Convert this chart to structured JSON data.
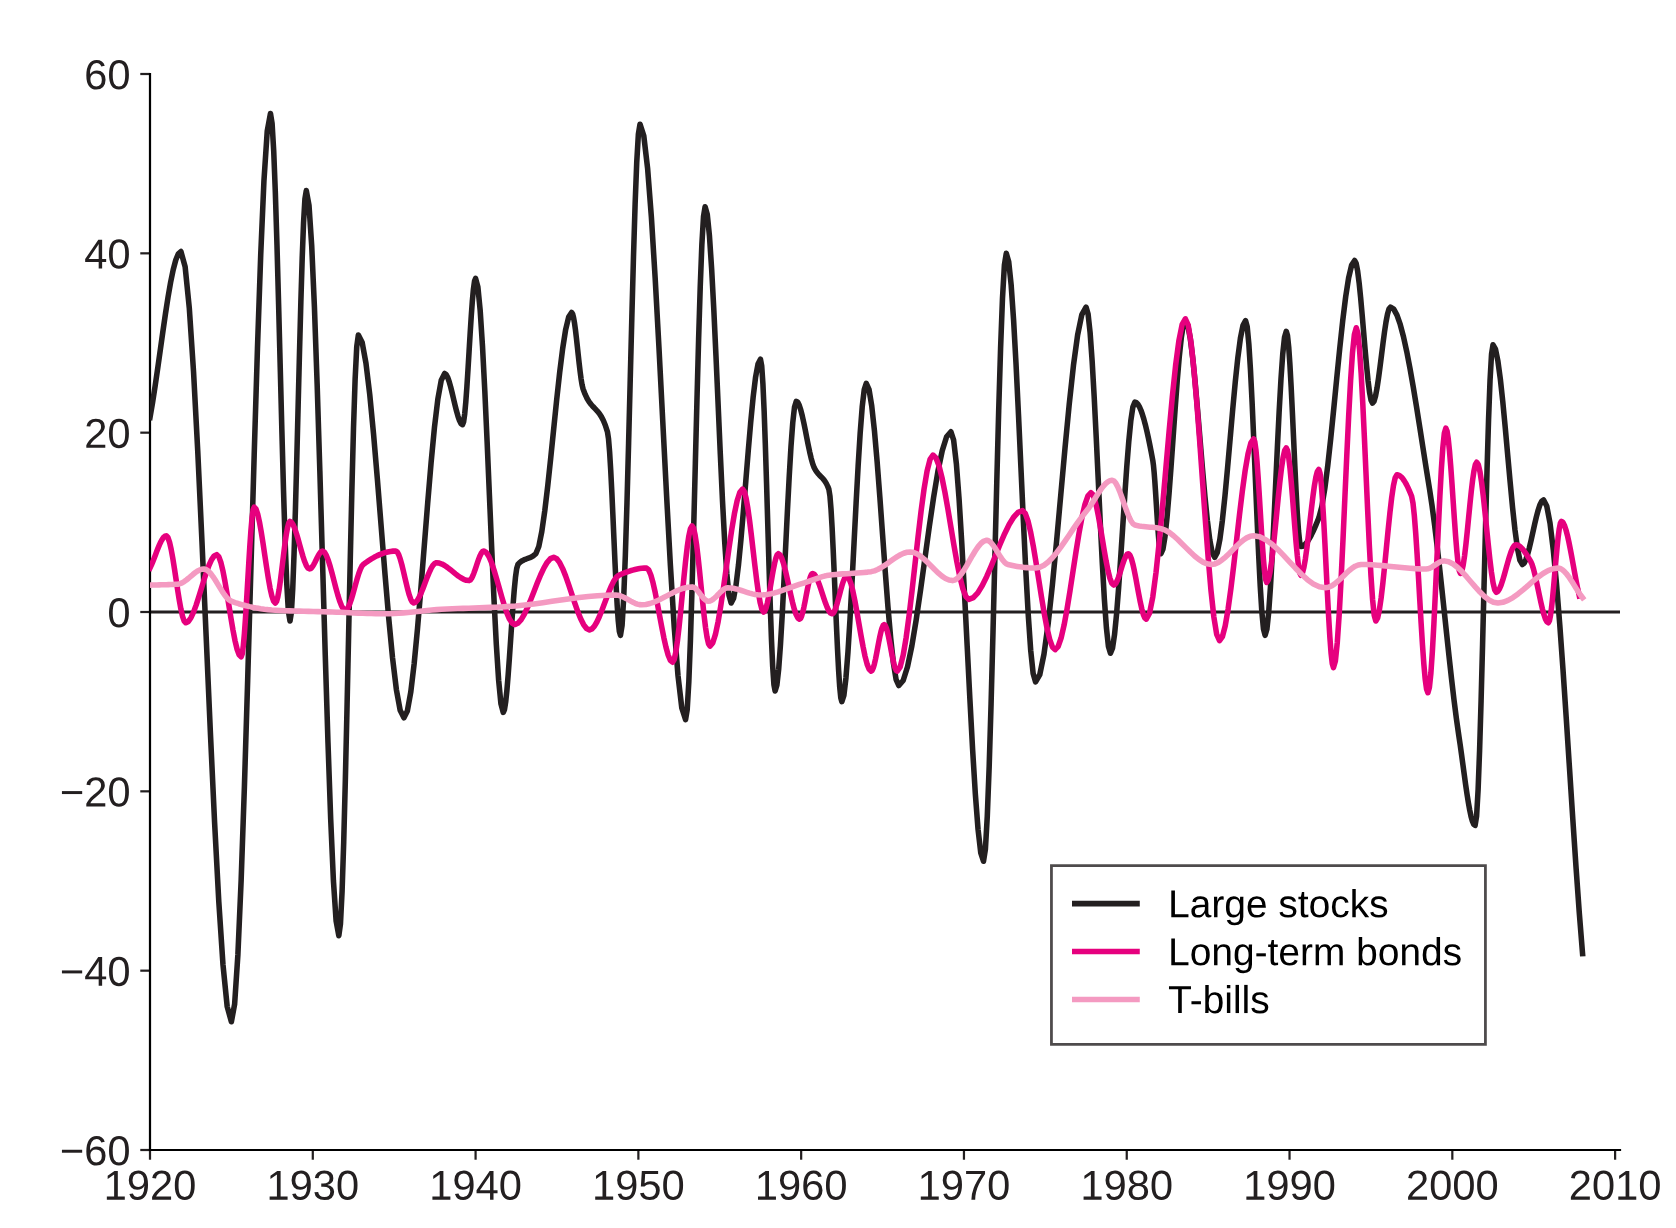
{
  "chart_data": {
    "type": "line",
    "xlim": [
      1920,
      2010.3
    ],
    "xticks": [
      1920,
      1930,
      1940,
      1950,
      1960,
      1970,
      1980,
      1990,
      2000,
      2010
    ],
    "ylim": [
      -60,
      60
    ],
    "yticks": [
      {
        "value": -60,
        "label": "−60"
      },
      {
        "value": -40,
        "label": "−40"
      },
      {
        "value": -20,
        "label": "−20"
      },
      0,
      20,
      40,
      60
    ],
    "grid": false,
    "legend": "bottom right",
    "marker": "none",
    "line_style": "solid",
    "ref_lines": [
      {
        "axis": "y",
        "value": 0,
        "color": "#231f20",
        "line_style": "solid"
      }
    ],
    "series": [
      {
        "name": "Large stocks",
        "color": "#231f20",
        "x": [
          1920,
          1921.9,
          1925.0,
          1927.4,
          1928.6,
          1929.6,
          1931.6,
          1932.8,
          1935.6,
          1938.1,
          1939.2,
          1940.0,
          1941.7,
          1942.6,
          1943.7,
          1945.9,
          1946.6,
          1948.1,
          1948.9,
          1950.1,
          1952.9,
          1954.1,
          1955.7,
          1957.5,
          1958.4,
          1959.7,
          1960.8,
          1961.7,
          1962.5,
          1964.0,
          1966.0,
          1969.2,
          1971.2,
          1972.6,
          1974.4,
          1977.5,
          1979.0,
          1980.5,
          1981.6,
          1982.1,
          1983.6,
          1985.4,
          1987.3,
          1988.5,
          1989.8,
          1990.7,
          1991.8,
          1994.0,
          1995.1,
          1996.2,
          1998.6,
          2000.4,
          2001.4,
          2002.5,
          2004.3,
          2005.6,
          2008.0
        ],
        "values": [
          21.7,
          40.2,
          -45.7,
          55.6,
          -1.0,
          47,
          -36.1,
          30.9,
          -11.8,
          26.6,
          20.9,
          37.2,
          -11.2,
          5.3,
          6.5,
          33.4,
          24.9,
          20.1,
          -2.6,
          54.4,
          -12,
          45.2,
          1,
          28.2,
          -8.8,
          23.5,
          16.1,
          13.7,
          -10,
          25.5,
          -8.2,
          20.1,
          -27.8,
          40,
          -7.8,
          34,
          -4.6,
          23.4,
          16.9,
          6.5,
          32.5,
          6.1,
          32.5,
          -2.6,
          31.3,
          7.3,
          10.5,
          39.2,
          23.3,
          34,
          13.7,
          -13.8,
          -23.8,
          29.8,
          5.3,
          12.5,
          -38.1
        ]
      },
      {
        "name": "Long-term bonds",
        "color": "#e6007e",
        "x": [
          1920,
          1921,
          1922.2,
          1924.1,
          1925.6,
          1926.4,
          1927.7,
          1928.6,
          1929.8,
          1930.6,
          1932.0,
          1933.1,
          1935.1,
          1936.2,
          1937.6,
          1939.6,
          1940.5,
          1942.4,
          1944.8,
          1947.0,
          1948.8,
          1950.5,
          1952.1,
          1953.3,
          1954.4,
          1956.4,
          1957.7,
          1958.6,
          1959.9,
          1960.7,
          1961.9,
          1962.8,
          1964.3,
          1965.1,
          1965.9,
          1968.1,
          1970.3,
          1973.6,
          1975.6,
          1977.8,
          1979.2,
          1980.1,
          1981.2,
          1983.6,
          1985.7,
          1987.8,
          1988.6,
          1989.8,
          1990.7,
          1991.8,
          1992.7,
          1994.1,
          1995.3,
          1996.6,
          1997.5,
          1998.5,
          1999.6,
          2000.5,
          2001.5,
          2002.7,
          2003.9,
          2004.8,
          2005.9,
          2006.7,
          2007.8
        ],
        "values": [
          4.9,
          8.5,
          -1.2,
          6.4,
          -5,
          11.7,
          1,
          10.1,
          4.8,
          6.8,
          0.2,
          5.3,
          6.8,
          1,
          5.5,
          3.5,
          6.8,
          -1.4,
          6.1,
          -2,
          4.1,
          4.9,
          -5.6,
          9.6,
          -3.8,
          13.7,
          0,
          6.5,
          -0.8,
          4.3,
          -0.2,
          4,
          -6.6,
          -1.4,
          -6.6,
          17.5,
          1.4,
          11.3,
          -4.2,
          13.3,
          3,
          6.5,
          -0.8,
          32.7,
          -3.2,
          19.3,
          3.3,
          18.3,
          4.1,
          15.9,
          -6.2,
          31.7,
          -1,
          15.3,
          12.9,
          -9,
          20.5,
          4.3,
          16.7,
          2.2,
          7.5,
          5.7,
          -1.2,
          10.1,
          1.8
        ]
      },
      {
        "name": "T-bills",
        "color": "#f49ac1",
        "x": [
          1920,
          1921.7,
          1923.3,
          1925,
          1927.7,
          1931.2,
          1934.4,
          1937.9,
          1941.9,
          1948.6,
          1950.2,
          1953.3,
          1954.3,
          1955.5,
          1957.5,
          1960.1,
          1961.7,
          1964.3,
          1966.7,
          1969.3,
          1971.4,
          1972.7,
          1974.4,
          1977.5,
          1979.1,
          1980.5,
          1982.1,
          1985.2,
          1987.8,
          1992.2,
          1994.4,
          1998.4,
          1999.5,
          2002.8,
          2006.5,
          2008
        ],
        "values": [
          3,
          3.1,
          4.8,
          1.2,
          0.2,
          0,
          -0.2,
          0.3,
          0.6,
          1.9,
          0.8,
          2.8,
          1.2,
          2.7,
          1.9,
          3.2,
          4.1,
          4.5,
          6.7,
          3.5,
          8,
          5.3,
          4.9,
          11.2,
          14.7,
          9.7,
          9.3,
          5.3,
          8.5,
          2.7,
          5.3,
          4.8,
          5.7,
          1,
          4.9,
          1.6
        ]
      }
    ]
  }
}
